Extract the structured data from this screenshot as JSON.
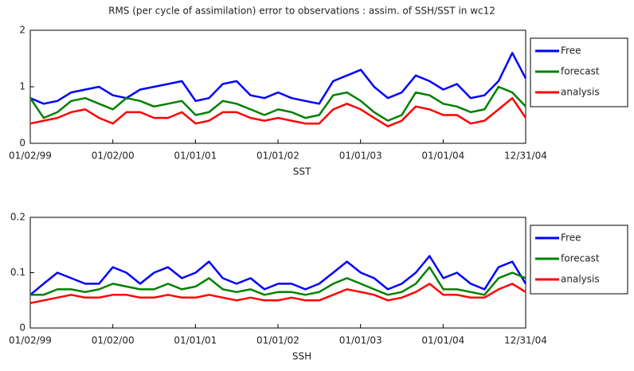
{
  "chart_data": [
    {
      "type": "line",
      "title": "RMS (per cycle of assimilation) error to observations : assim. of SSH/SST in wc12",
      "xlabel": "SST",
      "x": [
        "1999-01-02",
        "1999-03-02",
        "1999-05-02",
        "1999-07-02",
        "1999-09-02",
        "1999-11-02",
        "2000-01-02",
        "2000-03-02",
        "2000-05-02",
        "2000-07-02",
        "2000-09-02",
        "2000-11-02",
        "2001-01-02",
        "2001-03-02",
        "2001-05-02",
        "2001-07-02",
        "2001-09-02",
        "2001-11-02",
        "2002-01-02",
        "2002-03-02",
        "2002-05-02",
        "2002-07-02",
        "2002-09-02",
        "2002-11-02",
        "2003-01-02",
        "2003-03-02",
        "2003-05-02",
        "2003-07-02",
        "2003-09-02",
        "2003-11-02",
        "2004-01-02",
        "2004-03-02",
        "2004-05-02",
        "2004-07-02",
        "2004-09-02",
        "2004-11-02",
        "2004-12-31"
      ],
      "xlim": [
        "1999-01-02",
        "2004-12-31"
      ],
      "xticks": [
        {
          "value": "1999-01-02",
          "label": "01/02/99"
        },
        {
          "value": "2000-01-02",
          "label": "01/02/00"
        },
        {
          "value": "2001-01-01",
          "label": "01/01/01"
        },
        {
          "value": "2002-01-01",
          "label": "01/01/02"
        },
        {
          "value": "2003-01-01",
          "label": "01/01/03"
        },
        {
          "value": "2004-01-01",
          "label": "01/01/04"
        },
        {
          "value": "2004-12-31",
          "label": "12/31/04"
        }
      ],
      "ylim": [
        0,
        2
      ],
      "yticks": [
        0,
        1,
        2
      ],
      "legend": "outside-right",
      "series": [
        {
          "name": "Free",
          "color": "#0000ff",
          "values": [
            0.8,
            0.7,
            0.75,
            0.9,
            0.95,
            1.0,
            0.85,
            0.8,
            0.95,
            1.0,
            1.05,
            1.1,
            0.75,
            0.8,
            1.05,
            1.1,
            0.85,
            0.8,
            0.9,
            0.8,
            0.75,
            0.7,
            1.1,
            1.2,
            1.3,
            1.0,
            0.8,
            0.9,
            1.2,
            1.1,
            0.95,
            1.05,
            0.8,
            0.85,
            1.1,
            1.6,
            1.15
          ]
        },
        {
          "name": "forecast",
          "color": "#008000",
          "values": [
            0.8,
            0.45,
            0.55,
            0.75,
            0.8,
            0.7,
            0.6,
            0.8,
            0.75,
            0.65,
            0.7,
            0.75,
            0.5,
            0.55,
            0.75,
            0.7,
            0.6,
            0.5,
            0.6,
            0.55,
            0.45,
            0.5,
            0.85,
            0.9,
            0.75,
            0.55,
            0.4,
            0.5,
            0.9,
            0.85,
            0.7,
            0.65,
            0.55,
            0.6,
            1.0,
            0.9,
            0.65
          ]
        },
        {
          "name": "analysis",
          "color": "#ff0000",
          "values": [
            0.35,
            0.4,
            0.45,
            0.55,
            0.6,
            0.45,
            0.35,
            0.55,
            0.55,
            0.45,
            0.45,
            0.55,
            0.35,
            0.4,
            0.55,
            0.55,
            0.45,
            0.4,
            0.45,
            0.4,
            0.35,
            0.35,
            0.6,
            0.7,
            0.6,
            0.45,
            0.3,
            0.4,
            0.65,
            0.6,
            0.5,
            0.5,
            0.35,
            0.4,
            0.6,
            0.8,
            0.45
          ]
        }
      ]
    },
    {
      "type": "line",
      "xlabel": "SSH",
      "x": [
        "1999-01-02",
        "1999-03-02",
        "1999-05-02",
        "1999-07-02",
        "1999-09-02",
        "1999-11-02",
        "2000-01-02",
        "2000-03-02",
        "2000-05-02",
        "2000-07-02",
        "2000-09-02",
        "2000-11-02",
        "2001-01-02",
        "2001-03-02",
        "2001-05-02",
        "2001-07-02",
        "2001-09-02",
        "2001-11-02",
        "2002-01-02",
        "2002-03-02",
        "2002-05-02",
        "2002-07-02",
        "2002-09-02",
        "2002-11-02",
        "2003-01-02",
        "2003-03-02",
        "2003-05-02",
        "2003-07-02",
        "2003-09-02",
        "2003-11-02",
        "2004-01-02",
        "2004-03-02",
        "2004-05-02",
        "2004-07-02",
        "2004-09-02",
        "2004-11-02",
        "2004-12-31"
      ],
      "xlim": [
        "1999-01-02",
        "2004-12-31"
      ],
      "xticks": [
        {
          "value": "1999-01-02",
          "label": "01/02/99"
        },
        {
          "value": "2000-01-02",
          "label": "01/02/00"
        },
        {
          "value": "2001-01-01",
          "label": "01/01/01"
        },
        {
          "value": "2002-01-01",
          "label": "01/01/02"
        },
        {
          "value": "2003-01-01",
          "label": "01/01/03"
        },
        {
          "value": "2004-01-01",
          "label": "01/01/04"
        },
        {
          "value": "2004-12-31",
          "label": "12/31/04"
        }
      ],
      "ylim": [
        0,
        0.2
      ],
      "yticks": [
        0,
        0.1,
        0.2
      ],
      "legend": "outside-right",
      "series": [
        {
          "name": "Free",
          "color": "#0000ff",
          "values": [
            0.06,
            0.08,
            0.1,
            0.09,
            0.08,
            0.08,
            0.11,
            0.1,
            0.08,
            0.1,
            0.11,
            0.09,
            0.1,
            0.12,
            0.09,
            0.08,
            0.09,
            0.07,
            0.08,
            0.08,
            0.07,
            0.08,
            0.1,
            0.12,
            0.1,
            0.09,
            0.07,
            0.08,
            0.1,
            0.13,
            0.09,
            0.1,
            0.08,
            0.07,
            0.11,
            0.12,
            0.08
          ]
        },
        {
          "name": "forecast",
          "color": "#008000",
          "values": [
            0.06,
            0.06,
            0.07,
            0.07,
            0.065,
            0.07,
            0.08,
            0.075,
            0.07,
            0.07,
            0.08,
            0.07,
            0.075,
            0.09,
            0.07,
            0.065,
            0.07,
            0.06,
            0.065,
            0.065,
            0.06,
            0.065,
            0.08,
            0.09,
            0.08,
            0.07,
            0.06,
            0.065,
            0.08,
            0.11,
            0.07,
            0.07,
            0.065,
            0.06,
            0.09,
            0.1,
            0.09
          ]
        },
        {
          "name": "analysis",
          "color": "#ff0000",
          "values": [
            0.045,
            0.05,
            0.055,
            0.06,
            0.055,
            0.055,
            0.06,
            0.06,
            0.055,
            0.055,
            0.06,
            0.055,
            0.055,
            0.06,
            0.055,
            0.05,
            0.055,
            0.05,
            0.05,
            0.055,
            0.05,
            0.05,
            0.06,
            0.07,
            0.065,
            0.06,
            0.05,
            0.055,
            0.065,
            0.08,
            0.06,
            0.06,
            0.055,
            0.055,
            0.07,
            0.08,
            0.065
          ]
        }
      ]
    }
  ]
}
